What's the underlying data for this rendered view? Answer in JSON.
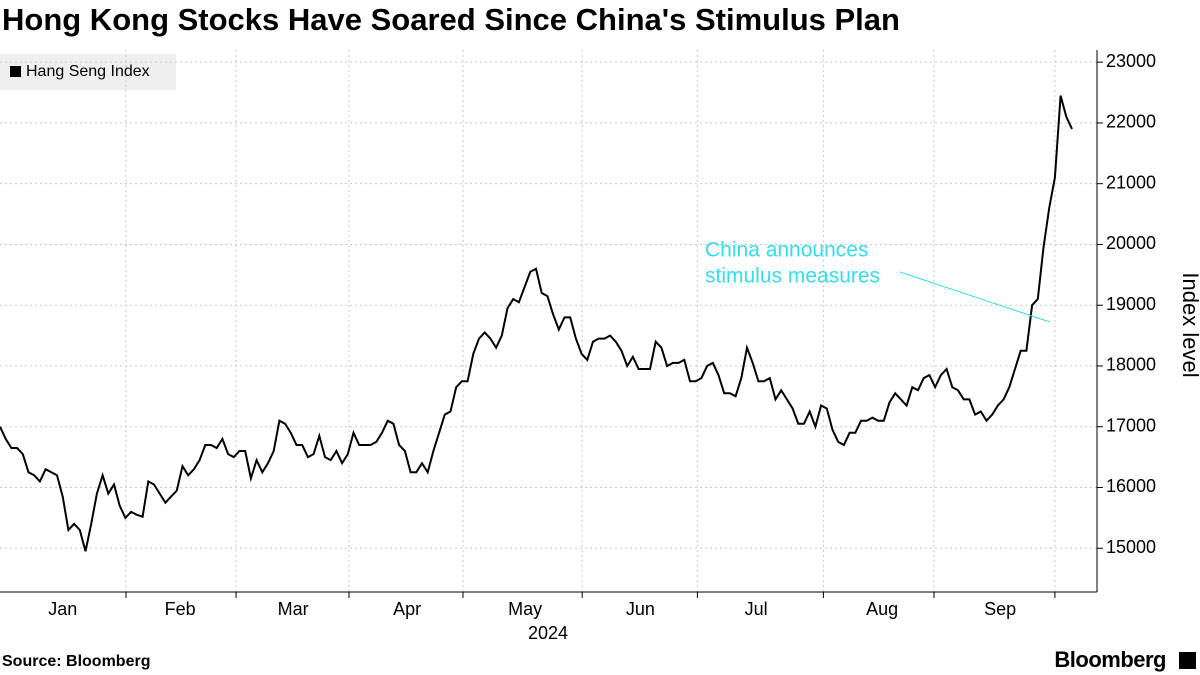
{
  "chart_data": {
    "type": "line",
    "title": "Hong Kong Stocks Have Soared Since China's Stimulus Plan",
    "source": "Source: Bloomberg",
    "brand": "Bloomberg",
    "y_label": "Index level",
    "x_label": "2024",
    "annotation": [
      "China announces",
      "stimulus measures"
    ],
    "series": [
      {
        "name": "Hang Seng Index",
        "color": "#000000",
        "values": [
          17000,
          16800,
          16650,
          16650,
          16550,
          16250,
          16200,
          16100,
          16300,
          16250,
          16200,
          15850,
          15300,
          15400,
          15300,
          14950,
          15400,
          15900,
          16200,
          15900,
          16050,
          15700,
          15500,
          15600,
          15550,
          15520,
          16100,
          16050,
          15900,
          15750,
          15850,
          15950,
          16350,
          16200,
          16300,
          16450,
          16700,
          16700,
          16650,
          16800,
          16550,
          16500,
          16600,
          16600,
          16150,
          16450,
          16250,
          16400,
          16600,
          17100,
          17050,
          16900,
          16700,
          16700,
          16500,
          16550,
          16850,
          16500,
          16450,
          16600,
          16400,
          16550,
          16900,
          16700,
          16700,
          16700,
          16750,
          16900,
          17100,
          17050,
          16700,
          16600,
          16250,
          16250,
          16400,
          16250,
          16600,
          16900,
          17200,
          17250,
          17650,
          17750,
          17750,
          18200,
          18450,
          18550,
          18450,
          18300,
          18500,
          18950,
          19100,
          19050,
          19300,
          19550,
          19600,
          19200,
          19150,
          18850,
          18600,
          18800,
          18800,
          18450,
          18200,
          18100,
          18400,
          18450,
          18450,
          18500,
          18400,
          18250,
          18000,
          18150,
          17950,
          17950,
          17950,
          18400,
          18300,
          18000,
          18050,
          18050,
          18100,
          17750,
          17750,
          17800,
          18000,
          18050,
          17850,
          17550,
          17550,
          17500,
          17800,
          18300,
          18050,
          17750,
          17750,
          17800,
          17450,
          17600,
          17450,
          17300,
          17050,
          17050,
          17250,
          17000,
          17350,
          17300,
          16950,
          16750,
          16700,
          16900,
          16900,
          17100,
          17100,
          17150,
          17100,
          17100,
          17400,
          17550,
          17450,
          17350,
          17650,
          17600,
          17800,
          17850,
          17650,
          17850,
          17950,
          17650,
          17600,
          17450,
          17450,
          17200,
          17250,
          17100,
          17200,
          17350,
          17450,
          17650,
          17950,
          18250,
          18250,
          19000,
          19100,
          19950,
          20600,
          21100,
          22450,
          22100,
          21900
        ]
      }
    ],
    "xlim": [
      0,
      188
    ],
    "xticks": [
      22.1,
      41.4,
      61.2,
      81.2,
      102.1,
      122.3,
      144.4,
      163.8,
      185
    ],
    "xtick_labels": [
      {
        "value": 11,
        "label": "Jan"
      },
      {
        "value": 31.6,
        "label": "Feb"
      },
      {
        "value": 51.4,
        "label": "Mar"
      },
      {
        "value": 71.4,
        "label": "Apr"
      },
      {
        "value": 92.1,
        "label": "May"
      },
      {
        "value": 112.3,
        "label": "Jun"
      },
      {
        "value": 132.6,
        "label": "Jul"
      },
      {
        "value": 154.7,
        "label": "Aug"
      },
      {
        "value": 175.4,
        "label": "Sep"
      }
    ],
    "ylim": [
      14280,
      23200
    ],
    "yticks": [
      15000,
      16000,
      17000,
      18000,
      19000,
      20000,
      21000,
      22000,
      23000
    ],
    "grid": true,
    "annotation_color": "#33ddf0"
  }
}
